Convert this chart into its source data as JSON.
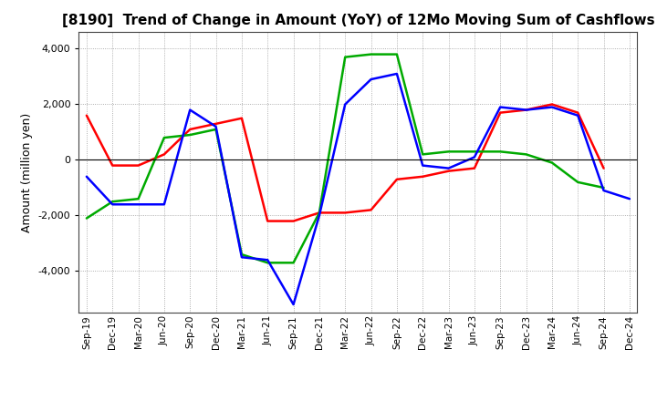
{
  "title": "[8190]  Trend of Change in Amount (YoY) of 12Mo Moving Sum of Cashflows",
  "xlabel": "",
  "ylabel": "Amount (million yen)",
  "x_labels": [
    "Sep-19",
    "Dec-19",
    "Mar-20",
    "Jun-20",
    "Sep-20",
    "Dec-20",
    "Mar-21",
    "Jun-21",
    "Sep-21",
    "Dec-21",
    "Mar-22",
    "Jun-22",
    "Sep-22",
    "Dec-22",
    "Mar-23",
    "Jun-23",
    "Sep-23",
    "Dec-23",
    "Mar-24",
    "Jun-24",
    "Sep-24",
    "Dec-24"
  ],
  "operating_cashflow": [
    1600,
    -200,
    -200,
    200,
    1100,
    1300,
    1500,
    -2200,
    -2200,
    -1900,
    -1900,
    -1800,
    -700,
    -600,
    -400,
    -300,
    1700,
    1800,
    2000,
    1700,
    -300,
    null
  ],
  "investing_cashflow": [
    -2100,
    -1500,
    -1400,
    800,
    900,
    1100,
    -3400,
    -3700,
    -3700,
    -1900,
    3700,
    3800,
    3800,
    200,
    300,
    300,
    300,
    200,
    -100,
    -800,
    -1000,
    null
  ],
  "free_cashflow": [
    -600,
    -1600,
    -1600,
    -1600,
    1800,
    1200,
    -3500,
    -3600,
    -5200,
    -2000,
    2000,
    2900,
    3100,
    -200,
    -300,
    100,
    1900,
    1800,
    1900,
    1600,
    -1100,
    -1400
  ],
  "colors": {
    "operating": "#ff0000",
    "investing": "#00aa00",
    "free": "#0000ff"
  },
  "ylim": [
    -5500,
    4600
  ],
  "yticks": [
    -4000,
    -2000,
    0,
    2000,
    4000
  ],
  "background": "#ffffff",
  "grid_color": "#999999",
  "title_fontsize": 11,
  "axis_label_fontsize": 9,
  "tick_fontsize": 8,
  "xtick_fontsize": 7.5,
  "legend_fontsize": 9,
  "linewidth": 1.8
}
